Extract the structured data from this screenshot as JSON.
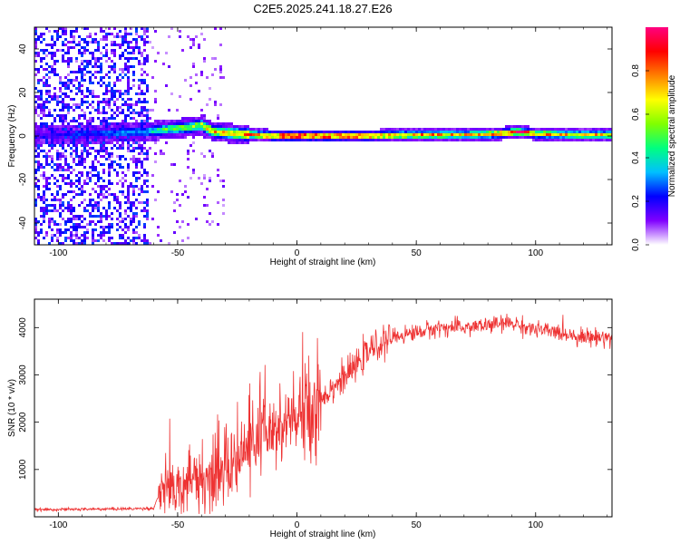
{
  "title": "C2E5.2025.241.18.27.E26",
  "chart_data": [
    {
      "type": "heatmap",
      "xlabel": "Height of straight line (km)",
      "ylabel": "Frequency (Hz)",
      "xlim": [
        -110,
        132
      ],
      "ylim": [
        -50,
        50
      ],
      "xticks": [
        -100,
        -50,
        0,
        50,
        100
      ],
      "yticks": [
        -40,
        -20,
        0,
        20,
        40
      ],
      "colorbar": {
        "label": "Normalized spectral amplitude",
        "range": [
          0,
          1
        ],
        "ticks": [
          0.0,
          0.2,
          0.4,
          0.6,
          0.8
        ],
        "palette": [
          "#ffffff",
          "#8000ff",
          "#0000ff",
          "#00c0ff",
          "#00ff80",
          "#80ff00",
          "#ffff00",
          "#ff8000",
          "#ff0000",
          "#ff0080"
        ]
      },
      "ridge": [
        {
          "x": -110,
          "f": 0,
          "amp": 0.15
        },
        {
          "x": -62,
          "f": 2,
          "amp": 0.35
        },
        {
          "x": -55,
          "f": 3,
          "amp": 0.5
        },
        {
          "x": -45,
          "f": 4,
          "amp": 0.55
        },
        {
          "x": -40,
          "f": 5,
          "amp": 0.6
        },
        {
          "x": -35,
          "f": 2,
          "amp": 0.7
        },
        {
          "x": -25,
          "f": 1,
          "amp": 0.75
        },
        {
          "x": -10,
          "f": 0,
          "amp": 0.85
        },
        {
          "x": 0,
          "f": 0,
          "amp": 0.95
        },
        {
          "x": 10,
          "f": 0,
          "amp": 0.9
        },
        {
          "x": 20,
          "f": 0,
          "amp": 0.9
        },
        {
          "x": 30,
          "f": 0,
          "amp": 0.8
        },
        {
          "x": 50,
          "f": 0.5,
          "amp": 0.75
        },
        {
          "x": 70,
          "f": 0.5,
          "amp": 0.7
        },
        {
          "x": 85,
          "f": 1,
          "amp": 0.8
        },
        {
          "x": 92,
          "f": 2,
          "amp": 0.95
        },
        {
          "x": 100,
          "f": 1,
          "amp": 0.75
        },
        {
          "x": 115,
          "f": 0.5,
          "amp": 0.7
        },
        {
          "x": 132,
          "f": 0.5,
          "amp": 0.7
        }
      ]
    },
    {
      "type": "line",
      "xlabel": "Height of straight line (km)",
      "ylabel": "SNR (10 * v/v)",
      "xlim": [
        -110,
        132
      ],
      "ylim": [
        0,
        4600
      ],
      "xticks": [
        -100,
        -50,
        0,
        50,
        100
      ],
      "yticks": [
        1000,
        2000,
        3000,
        4000
      ],
      "series": [
        {
          "name": "SNR",
          "color": "#ee3333",
          "x": [
            -110,
            -90,
            -70,
            -60,
            -57,
            -55,
            -50,
            -45,
            -40,
            -35,
            -30,
            -25,
            -20,
            -15,
            -10,
            -5,
            0,
            5,
            10,
            15,
            20,
            25,
            30,
            40,
            50,
            60,
            70,
            80,
            90,
            100,
            110,
            120,
            132
          ],
          "values": [
            150,
            160,
            170,
            180,
            600,
            700,
            650,
            700,
            800,
            800,
            1000,
            1200,
            1500,
            1700,
            1750,
            1900,
            2100,
            2300,
            2500,
            2750,
            2950,
            3200,
            3500,
            3800,
            3900,
            4000,
            4000,
            4050,
            4100,
            3950,
            3900,
            3800,
            3800
          ]
        }
      ]
    }
  ]
}
